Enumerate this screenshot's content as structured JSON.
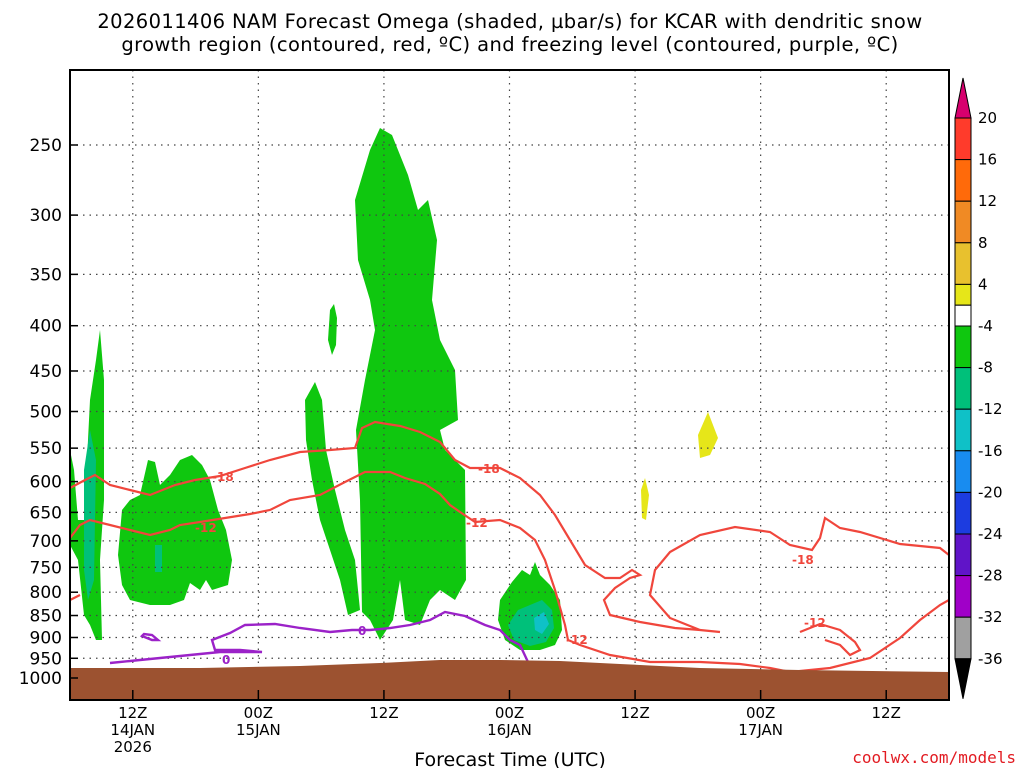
{
  "title_line1": "2026011406 NAM Forecast Omega (shaded, µbar/s) for KCAR with dendritic snow",
  "title_line2": "growth region (contoured, red, ºC) and freezing level (contoured, purple, ºC)",
  "credit": "coolwx.com/models",
  "chart_data": {
    "type": "heatmap",
    "title": "2026011406 NAM Forecast Omega (shaded, µbar/s) for KCAR with dendritic snow growth region (contoured, red, ºC) and freezing level (contoured, purple, ºC)",
    "xlabel": "Forecast Time (UTC)",
    "ylabel": "",
    "x_range_hours_from_init": [
      0,
      84
    ],
    "y_range_hpa": [
      1000,
      200
    ],
    "y_scale": "log-pressure",
    "grid": true,
    "y_ticks": [
      250,
      300,
      350,
      400,
      450,
      500,
      550,
      600,
      650,
      700,
      750,
      800,
      850,
      900,
      950,
      1000
    ],
    "x_ticks": [
      {
        "hour": 6,
        "label1": "12Z",
        "label2": "14JAN",
        "label3": "2026"
      },
      {
        "hour": 18,
        "label1": "00Z",
        "label2": "15JAN",
        "label3": ""
      },
      {
        "hour": 30,
        "label1": "12Z",
        "label2": "",
        "label3": ""
      },
      {
        "hour": 42,
        "label1": "00Z",
        "label2": "16JAN",
        "label3": ""
      },
      {
        "hour": 54,
        "label1": "12Z",
        "label2": "",
        "label3": ""
      },
      {
        "hour": 66,
        "label1": "00Z",
        "label2": "17JAN",
        "label3": ""
      },
      {
        "hour": 78,
        "label1": "12Z",
        "label2": "",
        "label3": ""
      }
    ],
    "colorbar": {
      "labels": [
        "20",
        "16",
        "12",
        "8",
        "4",
        "-4",
        "-8",
        "-12",
        "-16",
        "-20",
        "-24",
        "-28",
        "-32",
        "-36"
      ],
      "bins": [
        {
          "from": 20,
          "to": null,
          "color": "#d7006e"
        },
        {
          "from": 16,
          "to": 20,
          "color": "#ff3b2b"
        },
        {
          "from": 12,
          "to": 16,
          "color": "#ff6a0a"
        },
        {
          "from": 8,
          "to": 12,
          "color": "#f08a24"
        },
        {
          "from": 4,
          "to": 8,
          "color": "#e8c12e"
        },
        {
          "from": 0,
          "to": 4,
          "color": "#e6e619"
        },
        {
          "from": -4,
          "to": 4,
          "color": "#ffffff"
        },
        {
          "from": -8,
          "to": -4,
          "color": "#0fc70f"
        },
        {
          "from": -12,
          "to": -8,
          "color": "#00c07a"
        },
        {
          "from": -16,
          "to": -12,
          "color": "#0fc1c7"
        },
        {
          "from": -20,
          "to": -16,
          "color": "#188cf0"
        },
        {
          "from": -24,
          "to": -20,
          "color": "#1c3ce0"
        },
        {
          "from": -28,
          "to": -24,
          "color": "#6014c8"
        },
        {
          "from": -32,
          "to": -28,
          "color": "#a000c8"
        },
        {
          "from": -36,
          "to": -32,
          "color": "#a0a0a0"
        },
        {
          "from": null,
          "to": -36,
          "color": "#000000"
        }
      ]
    },
    "contour_labels": {
      "red": [
        "-18",
        "-12",
        "-18",
        "-12",
        "-18",
        "-12",
        "-12"
      ],
      "purple": [
        "0",
        "0"
      ]
    },
    "colors": {
      "dgz_contour": "#f0463c",
      "freezing_contour": "#9b22c8",
      "terrain": "#9c5230",
      "omega_green": "#0fc70f",
      "omega_teal": "#00c07a",
      "omega_cyan": "#0fc1c7",
      "omega_yellow": "#e6e619"
    }
  }
}
